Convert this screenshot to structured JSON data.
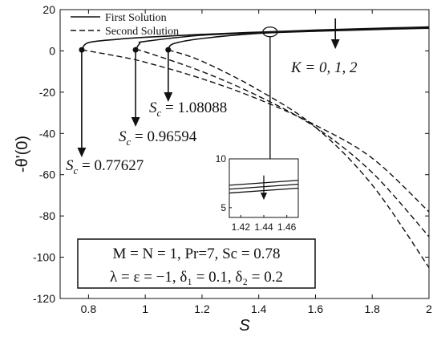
{
  "chart_data": {
    "type": "line",
    "xlabel": "S",
    "ylabel": "-θ'(0)",
    "xlim": [
      0.7,
      2.0
    ],
    "ylim": [
      -120,
      20
    ],
    "xticks": [
      "0.8",
      "1",
      "1.2",
      "1.4",
      "1.6",
      "1.8",
      "2"
    ],
    "yticks": [
      "20",
      "0",
      "-20",
      "-40",
      "-60",
      "-80",
      "-100",
      "-120"
    ],
    "grid": false,
    "legend": {
      "position": "top-left",
      "entries": [
        {
          "label": "First Solution",
          "style": "solid"
        },
        {
          "label": "Second Solution",
          "style": "dashed"
        }
      ]
    },
    "series": [
      {
        "K": 0,
        "critical_point": [
          0.77627,
          0.5
        ],
        "first_solution": {
          "x": [
            0.77627,
            0.8,
            0.9,
            1.0,
            1.2,
            1.4,
            1.6,
            1.8,
            2.0
          ],
          "y": [
            0.5,
            4.0,
            5.6,
            6.6,
            8.0,
            9.1,
            10.1,
            10.9,
            11.6
          ]
        },
        "second_solution": {
          "x": [
            0.77627,
            0.9,
            1.0,
            1.2,
            1.4,
            1.6,
            1.8,
            2.0
          ],
          "y": [
            0.5,
            -2.5,
            -5.5,
            -13.5,
            -23.5,
            -36.0,
            -52.0,
            -78.0
          ]
        }
      },
      {
        "K": 1,
        "critical_point": [
          0.96594,
          0.5
        ],
        "first_solution": {
          "x": [
            0.96594,
            0.98,
            1.0,
            1.2,
            1.4,
            1.6,
            1.8,
            2.0
          ],
          "y": [
            0.5,
            3.5,
            4.6,
            7.6,
            8.8,
            9.8,
            10.6,
            11.3
          ]
        },
        "second_solution": {
          "x": [
            0.96594,
            1.0,
            1.2,
            1.4,
            1.6,
            1.8,
            2.0
          ],
          "y": [
            0.5,
            -0.5,
            -10.0,
            -22.0,
            -37.0,
            -59.0,
            -90.0
          ]
        }
      },
      {
        "K": 2,
        "critical_point": [
          1.08088,
          0.5
        ],
        "first_solution": {
          "x": [
            1.08088,
            1.1,
            1.2,
            1.4,
            1.6,
            1.8,
            2.0
          ],
          "y": [
            0.5,
            3.5,
            6.0,
            8.5,
            9.5,
            10.3,
            11.0
          ]
        },
        "second_solution": {
          "x": [
            1.08088,
            1.2,
            1.4,
            1.6,
            1.8,
            2.0
          ],
          "y": [
            0.5,
            -5.0,
            -19.0,
            -37.0,
            -65.0,
            -105.0
          ]
        }
      }
    ],
    "annotations": {
      "sc1": {
        "value": "0.77627",
        "x": 0.776
      },
      "sc2": {
        "value": "0.96594",
        "x": 0.966
      },
      "sc3": {
        "value": "1.08088",
        "x": 1.081
      },
      "k_label": "K = 0, 1, 2",
      "params_line1": "M = N = 1, Pr=7, Sc = 0.78",
      "params_line2": "λ = ε = −1, δ₁ = 0.1, δ₂ = 0.2"
    },
    "inset": {
      "xlim": [
        1.41,
        1.47
      ],
      "ylim": [
        4,
        10
      ],
      "xticks": [
        "1.42",
        "1.44",
        "1.46"
      ],
      "yticks": [
        "10",
        "5"
      ]
    }
  }
}
